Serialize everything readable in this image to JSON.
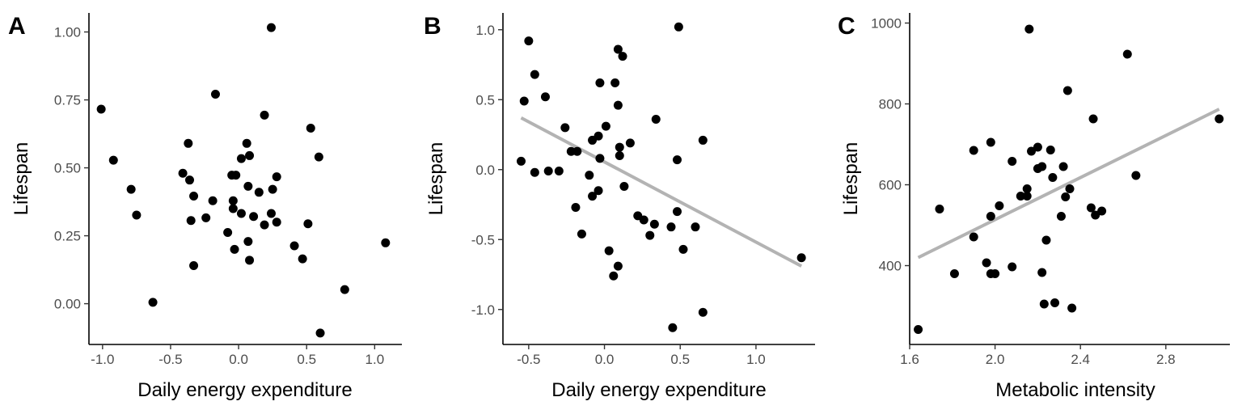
{
  "colors": {
    "point": "#000000",
    "trend_line": "#b3b3b3",
    "axis": "#000000",
    "tick_text": "#4d4d4d"
  },
  "chart_data": [
    {
      "type": "scatter",
      "panel_tag": "A",
      "xlabel": "Daily energy expenditure",
      "ylabel": "Lifespan",
      "xlim": [
        -1.1,
        1.2
      ],
      "ylim": [
        -0.15,
        1.07
      ],
      "x_ticks": [
        -1.0,
        -0.5,
        0.0,
        0.5,
        1.0
      ],
      "x_tick_labels": [
        "-1.0",
        "-0.5",
        "0.0",
        "0.5",
        "1.0"
      ],
      "y_ticks": [
        0.0,
        0.25,
        0.5,
        0.75,
        1.0
      ],
      "y_tick_labels": [
        "0.00",
        "0.25",
        "0.50",
        "0.75",
        "1.00"
      ],
      "grid": false,
      "points": [
        [
          -1.01,
          0.716
        ],
        [
          -0.92,
          0.528
        ],
        [
          -0.79,
          0.421
        ],
        [
          -0.75,
          0.326
        ],
        [
          -0.63,
          0.005
        ],
        [
          -0.41,
          0.48
        ],
        [
          -0.37,
          0.59
        ],
        [
          -0.36,
          0.455
        ],
        [
          -0.35,
          0.306
        ],
        [
          -0.33,
          0.396
        ],
        [
          -0.33,
          0.14
        ],
        [
          -0.24,
          0.316
        ],
        [
          -0.19,
          0.379
        ],
        [
          -0.17,
          0.771
        ],
        [
          -0.08,
          0.262
        ],
        [
          -0.05,
          0.473
        ],
        [
          -0.04,
          0.379
        ],
        [
          -0.04,
          0.35
        ],
        [
          -0.02,
          0.473
        ],
        [
          -0.03,
          0.2
        ],
        [
          0.02,
          0.534
        ],
        [
          0.02,
          0.332
        ],
        [
          0.06,
          0.59
        ],
        [
          0.07,
          0.432
        ],
        [
          0.08,
          0.545
        ],
        [
          0.07,
          0.229
        ],
        [
          0.08,
          0.16
        ],
        [
          0.11,
          0.321
        ],
        [
          0.15,
          0.41
        ],
        [
          0.19,
          0.694
        ],
        [
          0.19,
          0.29
        ],
        [
          0.24,
          1.016
        ],
        [
          0.25,
          0.421
        ],
        [
          0.24,
          0.332
        ],
        [
          0.28,
          0.467
        ],
        [
          0.28,
          0.3
        ],
        [
          0.41,
          0.213
        ],
        [
          0.47,
          0.165
        ],
        [
          0.51,
          0.294
        ],
        [
          0.53,
          0.646
        ],
        [
          0.59,
          0.54
        ],
        [
          0.6,
          -0.108
        ],
        [
          0.78,
          0.052
        ],
        [
          1.08,
          0.224
        ]
      ]
    },
    {
      "type": "scatter",
      "panel_tag": "B",
      "xlabel": "Daily energy expenditure",
      "ylabel": "Lifespan",
      "xlim": [
        -0.67,
        1.39
      ],
      "ylim": [
        -1.25,
        1.12
      ],
      "x_ticks": [
        -0.5,
        0.0,
        0.5,
        1.0
      ],
      "x_tick_labels": [
        "-0.5",
        "0.0",
        "0.5",
        "1.0"
      ],
      "y_ticks": [
        -1.0,
        -0.5,
        0.0,
        0.5,
        1.0
      ],
      "y_tick_labels": [
        "-1.0",
        "-0.5",
        "0.0",
        "0.5",
        "1.0"
      ],
      "grid": false,
      "trend_line": {
        "x": [
          -0.55,
          1.3
        ],
        "y": [
          0.37,
          -0.69
        ]
      },
      "points": [
        [
          -0.55,
          0.06
        ],
        [
          -0.53,
          0.49
        ],
        [
          -0.5,
          0.92
        ],
        [
          -0.46,
          0.68
        ],
        [
          -0.46,
          -0.02
        ],
        [
          -0.39,
          0.52
        ],
        [
          -0.37,
          -0.01
        ],
        [
          -0.3,
          -0.01
        ],
        [
          -0.26,
          0.3
        ],
        [
          -0.22,
          0.13
        ],
        [
          -0.18,
          0.13
        ],
        [
          -0.19,
          -0.27
        ],
        [
          -0.15,
          -0.46
        ],
        [
          -0.1,
          -0.04
        ],
        [
          -0.08,
          0.21
        ],
        [
          -0.08,
          -0.19
        ],
        [
          -0.04,
          -0.15
        ],
        [
          -0.03,
          0.08
        ],
        [
          -0.04,
          0.24
        ],
        [
          -0.03,
          0.62
        ],
        [
          0.01,
          0.31
        ],
        [
          0.03,
          -0.58
        ],
        [
          0.06,
          -0.76
        ],
        [
          0.07,
          0.62
        ],
        [
          0.09,
          0.46
        ],
        [
          0.09,
          0.86
        ],
        [
          0.1,
          0.1
        ],
        [
          0.09,
          -0.69
        ],
        [
          0.1,
          0.16
        ],
        [
          0.12,
          0.81
        ],
        [
          0.13,
          -0.12
        ],
        [
          0.17,
          0.19
        ],
        [
          0.22,
          -0.33
        ],
        [
          0.26,
          -0.36
        ],
        [
          0.3,
          -0.47
        ],
        [
          0.33,
          -0.39
        ],
        [
          0.34,
          0.36
        ],
        [
          0.44,
          -0.41
        ],
        [
          0.45,
          -1.13
        ],
        [
          0.48,
          0.07
        ],
        [
          0.48,
          -0.3
        ],
        [
          0.49,
          1.02
        ],
        [
          0.52,
          -0.57
        ],
        [
          0.6,
          -0.41
        ],
        [
          0.65,
          0.21
        ],
        [
          0.65,
          -1.02
        ],
        [
          1.3,
          -0.63
        ]
      ]
    },
    {
      "type": "scatter",
      "panel_tag": "C",
      "xlabel": "Metabolic intensity",
      "ylabel": "Lifespan",
      "xlim": [
        1.6,
        3.1
      ],
      "ylim": [
        205,
        1025
      ],
      "x_ticks": [
        1.6,
        2.0,
        2.4,
        2.8
      ],
      "x_tick_labels": [
        "1.6",
        "2.0",
        "2.4",
        "2.8"
      ],
      "y_ticks": [
        400,
        600,
        800,
        1000
      ],
      "y_tick_labels": [
        "400",
        "600",
        "800",
        "1000"
      ],
      "grid": false,
      "trend_line": {
        "x": [
          1.64,
          3.05
        ],
        "y": [
          420,
          787
        ]
      },
      "points": [
        [
          1.64,
          242
        ],
        [
          1.74,
          540
        ],
        [
          1.81,
          380
        ],
        [
          1.9,
          685
        ],
        [
          1.9,
          471
        ],
        [
          1.96,
          407
        ],
        [
          1.98,
          705
        ],
        [
          1.98,
          522
        ],
        [
          1.98,
          380
        ],
        [
          2.0,
          380
        ],
        [
          2.02,
          548
        ],
        [
          2.08,
          658
        ],
        [
          2.08,
          397
        ],
        [
          2.12,
          572
        ],
        [
          2.15,
          590
        ],
        [
          2.15,
          572
        ],
        [
          2.16,
          985
        ],
        [
          2.17,
          683
        ],
        [
          2.2,
          640
        ],
        [
          2.2,
          693
        ],
        [
          2.22,
          645
        ],
        [
          2.22,
          383
        ],
        [
          2.23,
          305
        ],
        [
          2.24,
          463
        ],
        [
          2.26,
          686
        ],
        [
          2.27,
          618
        ],
        [
          2.28,
          308
        ],
        [
          2.31,
          522
        ],
        [
          2.32,
          645
        ],
        [
          2.33,
          570
        ],
        [
          2.34,
          833
        ],
        [
          2.35,
          590
        ],
        [
          2.36,
          295
        ],
        [
          2.45,
          543
        ],
        [
          2.46,
          763
        ],
        [
          2.47,
          525
        ],
        [
          2.5,
          535
        ],
        [
          2.62,
          923
        ],
        [
          2.66,
          623
        ],
        [
          3.05,
          763
        ]
      ]
    }
  ]
}
